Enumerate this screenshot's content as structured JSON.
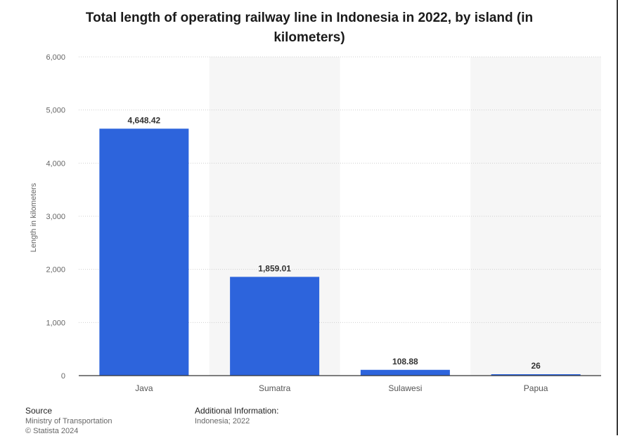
{
  "chart_data": {
    "type": "bar",
    "title": "Total length of operating railway line in Indonesia in 2022, by island (in kilometers)",
    "categories": [
      "Java",
      "Sumatra",
      "Sulawesi",
      "Papua"
    ],
    "values": [
      4648.42,
      1859.01,
      108.88,
      26
    ],
    "data_labels": [
      "4,648.42",
      "1,859.01",
      "108.88",
      "26"
    ],
    "xlabel": "",
    "ylabel": "Length in kilometers",
    "ylim": [
      0,
      6000
    ],
    "yticks": [
      0,
      1000,
      2000,
      3000,
      4000,
      5000,
      6000
    ],
    "ytick_labels": [
      "0",
      "1,000",
      "2,000",
      "3,000",
      "4,000",
      "5,000",
      "6,000"
    ],
    "grid": true,
    "bar_color": "#2d64dc"
  },
  "footer": {
    "source_heading": "Source",
    "source_lines": [
      "Ministry of Transportation",
      "© Statista 2024"
    ],
    "info_heading": "Additional Information:",
    "info_lines": [
      "Indonesia; 2022"
    ]
  }
}
